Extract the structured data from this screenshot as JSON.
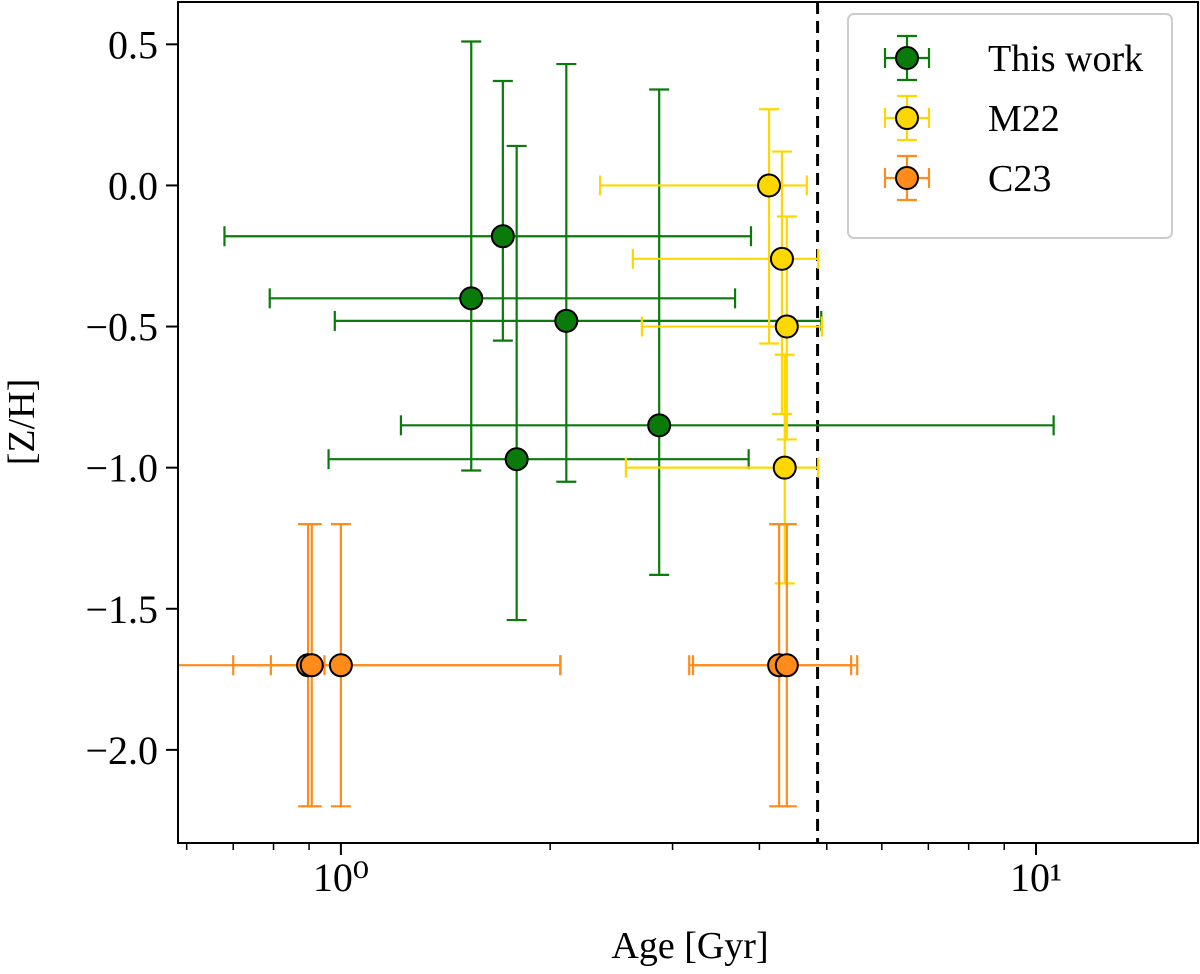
{
  "chart_data": {
    "type": "scatter",
    "xlabel": "Age [Gyr]",
    "ylabel": "[Z/H]",
    "xscale": "log",
    "xlim": [
      0.583,
      17.1
    ],
    "ylim": [
      -2.33,
      0.65
    ],
    "xticks": [
      {
        "value": 1,
        "label": "10⁰"
      },
      {
        "value": 10,
        "label": "10¹"
      }
    ],
    "xminorticks": [
      0.6,
      0.7,
      0.8,
      0.9,
      2,
      3,
      4,
      5,
      6,
      7,
      8,
      9
    ],
    "yticks": [
      {
        "value": -2,
        "label": "−2.0"
      },
      {
        "value": -1.5,
        "label": "−1.5"
      },
      {
        "value": -1,
        "label": "−1.0"
      },
      {
        "value": -0.5,
        "label": "−0.5"
      },
      {
        "value": 0,
        "label": "0.0"
      },
      0.5
    ],
    "vline": {
      "x": 4.85,
      "color": "#000000"
    },
    "legend": "upper right",
    "series": [
      {
        "name": "This work",
        "color": "#0a7a0a",
        "x": [
          1.71,
          1.54,
          2.11,
          2.87,
          1.79
        ],
        "y": [
          -0.18,
          -0.4,
          -0.48,
          -0.85,
          -0.97
        ],
        "xerr": [
          [
            1.03,
            2.18
          ],
          [
            0.75,
            2.15
          ],
          [
            1.13,
            2.8
          ],
          [
            1.65,
            7.73
          ],
          [
            0.83,
            2.07
          ]
        ],
        "yerr": [
          [
            0.37,
            0.55
          ],
          [
            0.61,
            0.91
          ],
          [
            0.57,
            0.91
          ],
          [
            0.53,
            1.19
          ],
          [
            0.57,
            1.11
          ]
        ]
      },
      {
        "name": "M22",
        "color": "#ffd700",
        "x": [
          4.13,
          4.31,
          4.38,
          4.35
        ],
        "y": [
          0.0,
          -0.26,
          -0.5,
          -1.0
        ],
        "xerr": [
          [
            1.77,
            0.55
          ],
          [
            1.68,
            0.55
          ],
          [
            1.67,
            0.54
          ],
          [
            1.78,
            0.51
          ]
        ],
        "yerr": [
          [
            0.56,
            0.27
          ],
          [
            0.55,
            0.38
          ],
          [
            0.4,
            0.39
          ],
          [
            0.41,
            0.4
          ]
        ]
      },
      {
        "name": "C23",
        "color": "#ff8c1a",
        "x": [
          0.897,
          0.908,
          1.0,
          4.27,
          4.38
        ],
        "y": [
          -1.7,
          -1.7,
          -1.7,
          -1.7,
          -1.7
        ],
        "xerr": [
          [
            0.35,
            0.05
          ],
          [
            0.115,
            1.16
          ],
          [
            0.3,
            1.07
          ],
          [
            1.1,
            1.15
          ],
          [
            1.17,
            1.15
          ]
        ],
        "yerr": [
          [
            0.5,
            0.5
          ],
          [
            0.5,
            0.5
          ],
          [
            0.5,
            0.5
          ],
          [
            0.5,
            0.5
          ],
          [
            0.5,
            0.5
          ]
        ]
      }
    ]
  }
}
